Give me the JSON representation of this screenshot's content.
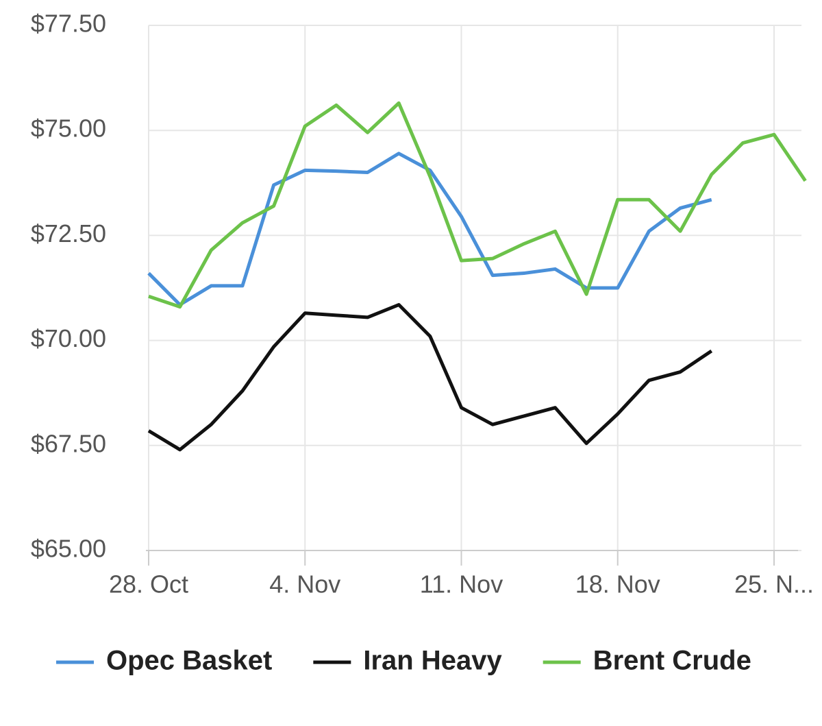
{
  "chart_data": {
    "type": "line",
    "categories": [
      "28. Oct",
      null,
      null,
      null,
      null,
      "4. Nov",
      null,
      null,
      null,
      null,
      "11. Nov",
      null,
      null,
      null,
      null,
      "18. Nov",
      null,
      null,
      null,
      null,
      "25. N...",
      null
    ],
    "series": [
      {
        "name": "Opec Basket",
        "color": "#4a90d9",
        "values": [
          71.6,
          70.85,
          71.3,
          71.3,
          73.7,
          74.05,
          74.03,
          74.0,
          74.45,
          74.05,
          72.95,
          71.55,
          71.6,
          71.7,
          71.25,
          71.25,
          72.6,
          73.15,
          73.35,
          null,
          null,
          null
        ]
      },
      {
        "name": "Iran Heavy",
        "color": "#111111",
        "values": [
          67.85,
          67.4,
          68.0,
          68.8,
          69.85,
          70.65,
          70.6,
          70.55,
          70.85,
          70.1,
          68.4,
          68.0,
          68.2,
          68.4,
          67.55,
          68.25,
          69.05,
          69.25,
          69.75,
          null,
          null,
          null
        ]
      },
      {
        "name": "Brent Crude",
        "color": "#6cc24a",
        "values": [
          71.05,
          70.8,
          72.15,
          72.8,
          73.2,
          75.1,
          75.6,
          74.95,
          75.65,
          73.9,
          71.9,
          71.95,
          72.3,
          72.6,
          71.1,
          73.35,
          73.35,
          72.6,
          73.95,
          74.7,
          74.9,
          73.8
        ]
      }
    ],
    "ylim": [
      65,
      77.5
    ],
    "yticks": [
      {
        "value": 65,
        "label": "$65.00"
      },
      {
        "value": 67.5,
        "label": "$67.50"
      },
      {
        "value": 70,
        "label": "$70.00"
      },
      {
        "value": 72.5,
        "label": "$72.50"
      },
      {
        "value": 75,
        "label": "$75.00"
      },
      {
        "value": 77.5,
        "label": "$77.50"
      }
    ],
    "grid": true
  }
}
